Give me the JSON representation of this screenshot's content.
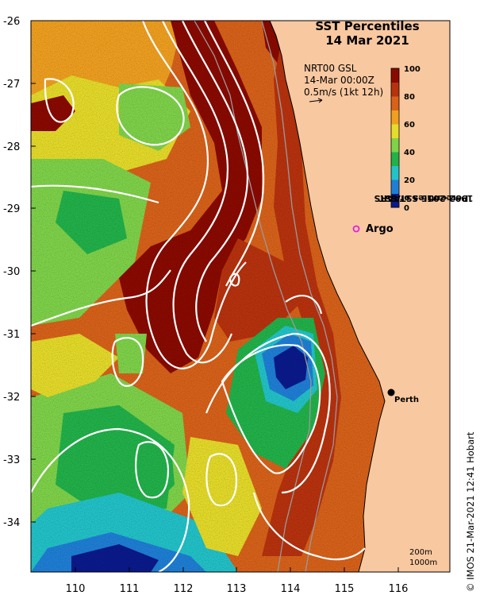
{
  "title": {
    "line1": "SST Percentiles",
    "line2": "14 Mar 2021"
  },
  "info": {
    "line1": "NRT00 GSL",
    "line2": "14-Mar 00:00Z",
    "line3": "0.5m/s (1kt 12h)"
  },
  "colorbar": {
    "title_line1": "1992-2016 SSTAARS",
    "title_line2": "Percentiles of SST",
    "ticks": [
      "100",
      "80",
      "60",
      "40",
      "20",
      "0"
    ],
    "colors": [
      "#0a1a8c",
      "#1f7fd6",
      "#22c3c9",
      "#22b24a",
      "#7fd34a",
      "#e6dc2a",
      "#f0a020",
      "#d8621a",
      "#b8320e",
      "#8a0a00"
    ]
  },
  "axes": {
    "y_ticks": [
      "-26",
      "-27",
      "-28",
      "-29",
      "-30",
      "-31",
      "-32",
      "-33",
      "-34"
    ],
    "x_ticks": [
      "110",
      "111",
      "112",
      "113",
      "114",
      "115",
      "116"
    ]
  },
  "labels": {
    "argo": "Argo",
    "perth": "Perth"
  },
  "depth": {
    "line1": "200m",
    "line2": "1000m"
  },
  "credit": "© IMOS 21-Mar-2021 12:41 Hobart",
  "colors": {
    "land": "#f8c8a0",
    "land_edge": "#000000",
    "contour": "#ffffff",
    "argo": "#e020e0"
  }
}
